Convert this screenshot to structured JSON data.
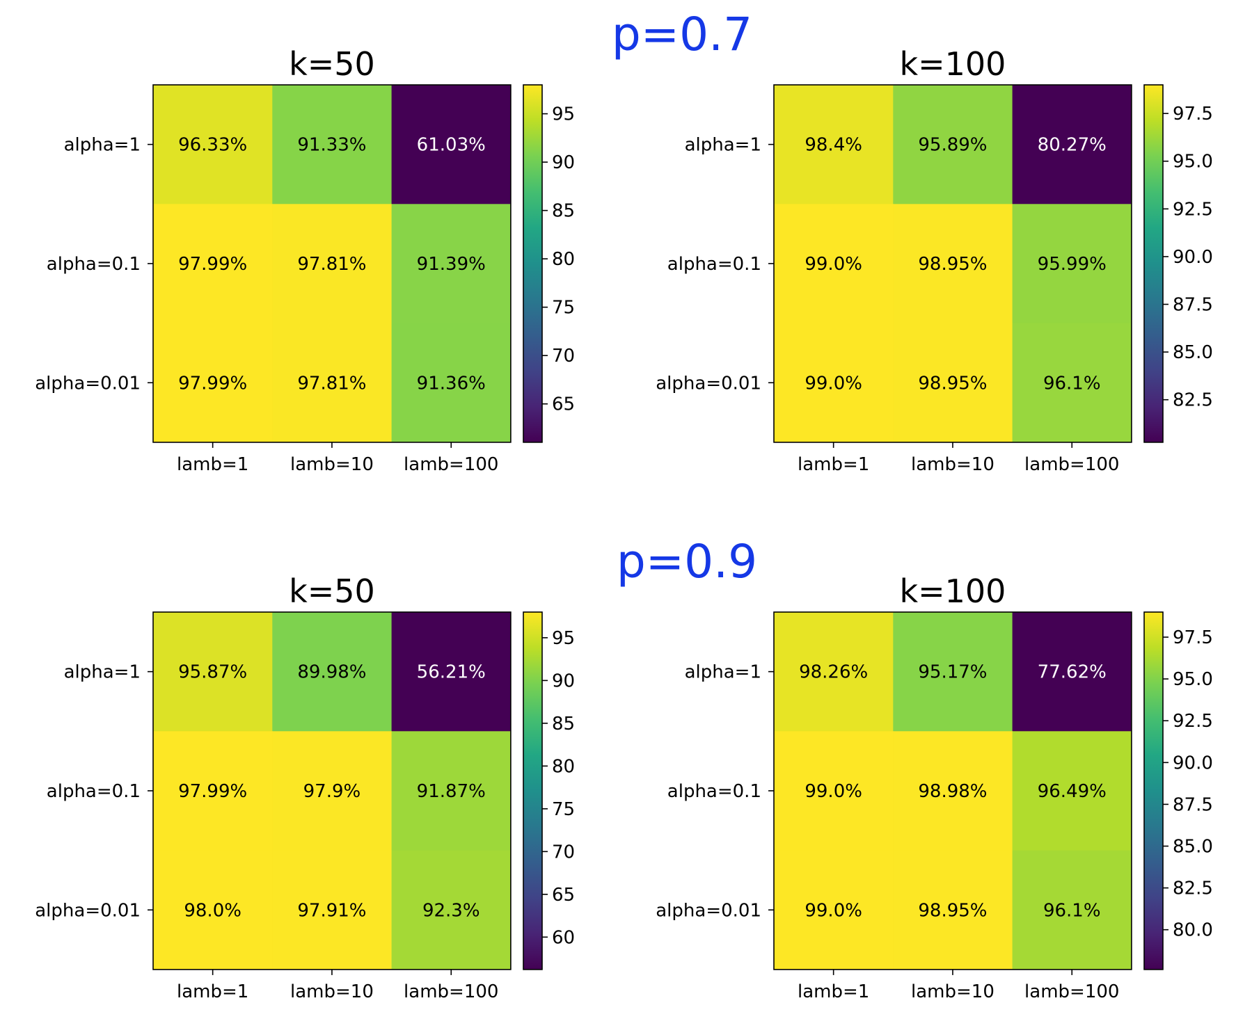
{
  "colors": {
    "group_title": "#1538e6",
    "axis": "#000000",
    "cell_text_dark": "#000000",
    "cell_text_light": "#ffffff",
    "colormap": "viridis"
  },
  "chart_data": [
    {
      "type": "heatmap",
      "group_title": "p=0.7",
      "title": "k=50",
      "x_categories": [
        "lamb=1",
        "lamb=10",
        "lamb=100"
      ],
      "y_categories": [
        "alpha=1",
        "alpha=0.1",
        "alpha=0.01"
      ],
      "values": [
        [
          96.33,
          91.33,
          61.03
        ],
        [
          97.99,
          97.81,
          91.39
        ],
        [
          97.99,
          97.81,
          91.36
        ]
      ],
      "cell_labels": [
        [
          "96.33%",
          "91.33%",
          "61.03%"
        ],
        [
          "97.99%",
          "97.81%",
          "91.39%"
        ],
        [
          "97.99%",
          "97.81%",
          "91.36%"
        ]
      ],
      "colorbar": {
        "range": [
          61.03,
          97.99
        ],
        "ticks": [
          65,
          70,
          75,
          80,
          85,
          90,
          95
        ],
        "tick_labels": [
          "65",
          "70",
          "75",
          "80",
          "85",
          "90",
          "95"
        ]
      }
    },
    {
      "type": "heatmap",
      "group_title": "p=0.7",
      "title": "k=100",
      "x_categories": [
        "lamb=1",
        "lamb=10",
        "lamb=100"
      ],
      "y_categories": [
        "alpha=1",
        "alpha=0.1",
        "alpha=0.01"
      ],
      "values": [
        [
          98.4,
          95.89,
          80.27
        ],
        [
          99.0,
          98.95,
          95.99
        ],
        [
          99.0,
          98.95,
          96.1
        ]
      ],
      "cell_labels": [
        [
          "98.4%",
          "95.89%",
          "80.27%"
        ],
        [
          "99.0%",
          "98.95%",
          "95.99%"
        ],
        [
          "99.0%",
          "98.95%",
          "96.1%"
        ]
      ],
      "colorbar": {
        "range": [
          80.27,
          99.0
        ],
        "ticks": [
          82.5,
          85.0,
          87.5,
          90.0,
          92.5,
          95.0,
          97.5
        ],
        "tick_labels": [
          "82.5",
          "85.0",
          "87.5",
          "90.0",
          "92.5",
          "95.0",
          "97.5"
        ]
      }
    },
    {
      "type": "heatmap",
      "group_title": "p=0.9",
      "title": "k=50",
      "x_categories": [
        "lamb=1",
        "lamb=10",
        "lamb=100"
      ],
      "y_categories": [
        "alpha=1",
        "alpha=0.1",
        "alpha=0.01"
      ],
      "values": [
        [
          95.87,
          89.98,
          56.21
        ],
        [
          97.99,
          97.9,
          91.87
        ],
        [
          98.0,
          97.91,
          92.3
        ]
      ],
      "cell_labels": [
        [
          "95.87%",
          "89.98%",
          "56.21%"
        ],
        [
          "97.99%",
          "97.9%",
          "91.87%"
        ],
        [
          "98.0%",
          "97.91%",
          "92.3%"
        ]
      ],
      "colorbar": {
        "range": [
          56.21,
          98.0
        ],
        "ticks": [
          60,
          65,
          70,
          75,
          80,
          85,
          90,
          95
        ],
        "tick_labels": [
          "60",
          "65",
          "70",
          "75",
          "80",
          "85",
          "90",
          "95"
        ]
      }
    },
    {
      "type": "heatmap",
      "group_title": "p=0.9",
      "title": "k=100",
      "x_categories": [
        "lamb=1",
        "lamb=10",
        "lamb=100"
      ],
      "y_categories": [
        "alpha=1",
        "alpha=0.1",
        "alpha=0.01"
      ],
      "values": [
        [
          98.26,
          95.17,
          77.62
        ],
        [
          99.0,
          98.98,
          96.49
        ],
        [
          99.0,
          98.95,
          96.1
        ]
      ],
      "cell_labels": [
        [
          "98.26%",
          "95.17%",
          "77.62%"
        ],
        [
          "99.0%",
          "98.98%",
          "96.49%"
        ],
        [
          "99.0%",
          "98.95%",
          "96.1%"
        ]
      ],
      "colorbar": {
        "range": [
          77.62,
          99.0
        ],
        "ticks": [
          80.0,
          82.5,
          85.0,
          87.5,
          90.0,
          92.5,
          95.0,
          97.5
        ],
        "tick_labels": [
          "80.0",
          "82.5",
          "85.0",
          "87.5",
          "90.0",
          "92.5",
          "95.0",
          "97.5"
        ]
      }
    }
  ],
  "group_titles": [
    "p=0.7",
    "p=0.9"
  ]
}
